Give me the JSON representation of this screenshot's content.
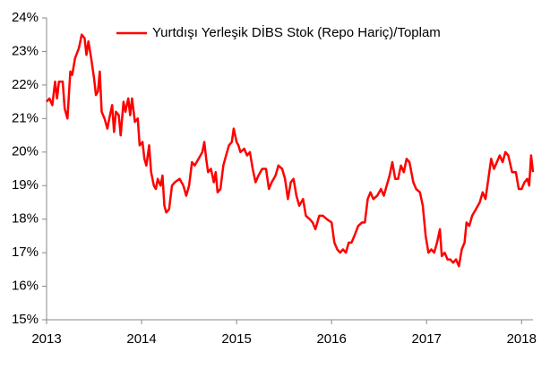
{
  "chart_data": {
    "type": "line",
    "series": [
      {
        "name": "Yurtdışı Yerleşik DİBS Stok (Repo Hariç)/Toplam",
        "color": "#ff0000",
        "x": [
          2013.0,
          2013.03,
          2013.06,
          2013.09,
          2013.11,
          2013.13,
          2013.17,
          2013.19,
          2013.22,
          2013.25,
          2013.27,
          2013.3,
          2013.34,
          2013.37,
          2013.4,
          2013.42,
          2013.44,
          2013.47,
          2013.5,
          2013.52,
          2013.54,
          2013.56,
          2013.58,
          2013.61,
          2013.64,
          2013.66,
          2013.69,
          2013.71,
          2013.73,
          2013.76,
          2013.78,
          2013.81,
          2013.83,
          2013.86,
          2013.88,
          2013.9,
          2013.93,
          2013.96,
          2013.98,
          2014.01,
          2014.03,
          2014.05,
          2014.08,
          2014.1,
          2014.13,
          2014.15,
          2014.17,
          2014.2,
          2014.22,
          2014.24,
          2014.26,
          2014.29,
          2014.32,
          2014.35,
          2014.4,
          2014.44,
          2014.47,
          2014.5,
          2014.53,
          2014.56,
          2014.6,
          2014.64,
          2014.66,
          2014.68,
          2014.7,
          2014.73,
          2014.76,
          2014.78,
          2014.8,
          2014.83,
          2014.86,
          2014.89,
          2014.92,
          2014.95,
          2014.97,
          2015.0,
          2015.02,
          2015.04,
          2015.08,
          2015.11,
          2015.14,
          2015.17,
          2015.2,
          2015.23,
          2015.27,
          2015.31,
          2015.34,
          2015.37,
          2015.41,
          2015.44,
          2015.48,
          2015.51,
          2015.54,
          2015.57,
          2015.6,
          2015.63,
          2015.66,
          2015.7,
          2015.73,
          2015.77,
          2015.8,
          2015.83,
          2015.87,
          2015.91,
          2015.95,
          2016.0,
          2016.03,
          2016.06,
          2016.09,
          2016.12,
          2016.15,
          2016.18,
          2016.21,
          2016.24,
          2016.28,
          2016.32,
          2016.35,
          2016.38,
          2016.41,
          2016.44,
          2016.48,
          2016.52,
          2016.55,
          2016.58,
          2016.61,
          2016.64,
          2016.67,
          2016.7,
          2016.73,
          2016.76,
          2016.79,
          2016.82,
          2016.86,
          2016.89,
          2016.93,
          2016.96,
          2016.99,
          2017.02,
          2017.05,
          2017.08,
          2017.11,
          2017.14,
          2017.16,
          2017.19,
          2017.22,
          2017.25,
          2017.28,
          2017.31,
          2017.34,
          2017.37,
          2017.4,
          2017.42,
          2017.45,
          2017.48,
          2017.52,
          2017.56,
          2017.59,
          2017.62,
          2017.65,
          2017.68,
          2017.71,
          2017.74,
          2017.77,
          2017.8,
          2017.83,
          2017.86,
          2017.9,
          2017.94,
          2017.97,
          2018.0,
          2018.03,
          2018.06,
          2018.08,
          2018.1,
          2018.12
        ],
        "values": [
          21.5,
          21.6,
          21.4,
          22.1,
          21.6,
          22.1,
          22.1,
          21.3,
          21.0,
          22.4,
          22.3,
          22.8,
          23.1,
          23.5,
          23.4,
          22.9,
          23.3,
          22.8,
          22.2,
          21.7,
          21.8,
          22.4,
          21.2,
          21.0,
          20.7,
          21.0,
          21.4,
          20.6,
          21.2,
          21.1,
          20.5,
          21.5,
          21.2,
          21.6,
          21.1,
          21.6,
          20.9,
          21.0,
          20.2,
          20.3,
          19.8,
          19.6,
          20.2,
          19.4,
          19.0,
          18.9,
          19.2,
          19.0,
          19.3,
          18.4,
          18.2,
          18.3,
          19.0,
          19.1,
          19.2,
          19.0,
          18.7,
          19.0,
          19.7,
          19.6,
          19.8,
          20.0,
          20.3,
          19.8,
          19.4,
          19.5,
          19.1,
          19.4,
          18.8,
          18.9,
          19.6,
          19.9,
          20.2,
          20.3,
          20.7,
          20.3,
          20.2,
          20.0,
          20.1,
          19.9,
          20.0,
          19.5,
          19.1,
          19.3,
          19.5,
          19.5,
          18.9,
          19.1,
          19.3,
          19.6,
          19.5,
          19.2,
          18.6,
          19.1,
          19.2,
          18.7,
          18.4,
          18.6,
          18.1,
          18.0,
          17.9,
          17.7,
          18.1,
          18.1,
          18.0,
          17.9,
          17.3,
          17.1,
          17.0,
          17.1,
          17.0,
          17.3,
          17.3,
          17.5,
          17.8,
          17.9,
          17.9,
          18.6,
          18.8,
          18.6,
          18.7,
          18.9,
          18.7,
          19.0,
          19.3,
          19.7,
          19.2,
          19.2,
          19.6,
          19.4,
          19.8,
          19.7,
          19.1,
          18.9,
          18.8,
          18.4,
          17.5,
          17.0,
          17.1,
          17.0,
          17.3,
          17.7,
          16.9,
          17.0,
          16.8,
          16.8,
          16.7,
          16.8,
          16.6,
          17.1,
          17.3,
          17.9,
          17.8,
          18.1,
          18.3,
          18.5,
          18.8,
          18.6,
          19.2,
          19.8,
          19.5,
          19.7,
          19.9,
          19.7,
          20.0,
          19.9,
          19.4,
          19.4,
          18.9,
          18.9,
          19.1,
          19.2,
          19.0,
          19.9,
          19.4
        ]
      }
    ],
    "xlim": [
      2013,
      2018.12
    ],
    "xticks": [
      2013,
      2014,
      2015,
      2016,
      2017,
      2018
    ],
    "ylim": [
      15,
      24
    ],
    "yticks": [
      {
        "value": 15,
        "label": "15%"
      },
      {
        "value": 16,
        "label": "16%"
      },
      {
        "value": 17,
        "label": "17%"
      },
      {
        "value": 18,
        "label": "18%"
      },
      {
        "value": 19,
        "label": "19%"
      },
      {
        "value": 20,
        "label": "20%"
      },
      {
        "value": 21,
        "label": "21%"
      },
      {
        "value": 22,
        "label": "22%"
      },
      {
        "value": 23,
        "label": "23%"
      },
      {
        "value": 24,
        "label": "24%"
      }
    ],
    "grid": false,
    "legend": "upper-right"
  }
}
